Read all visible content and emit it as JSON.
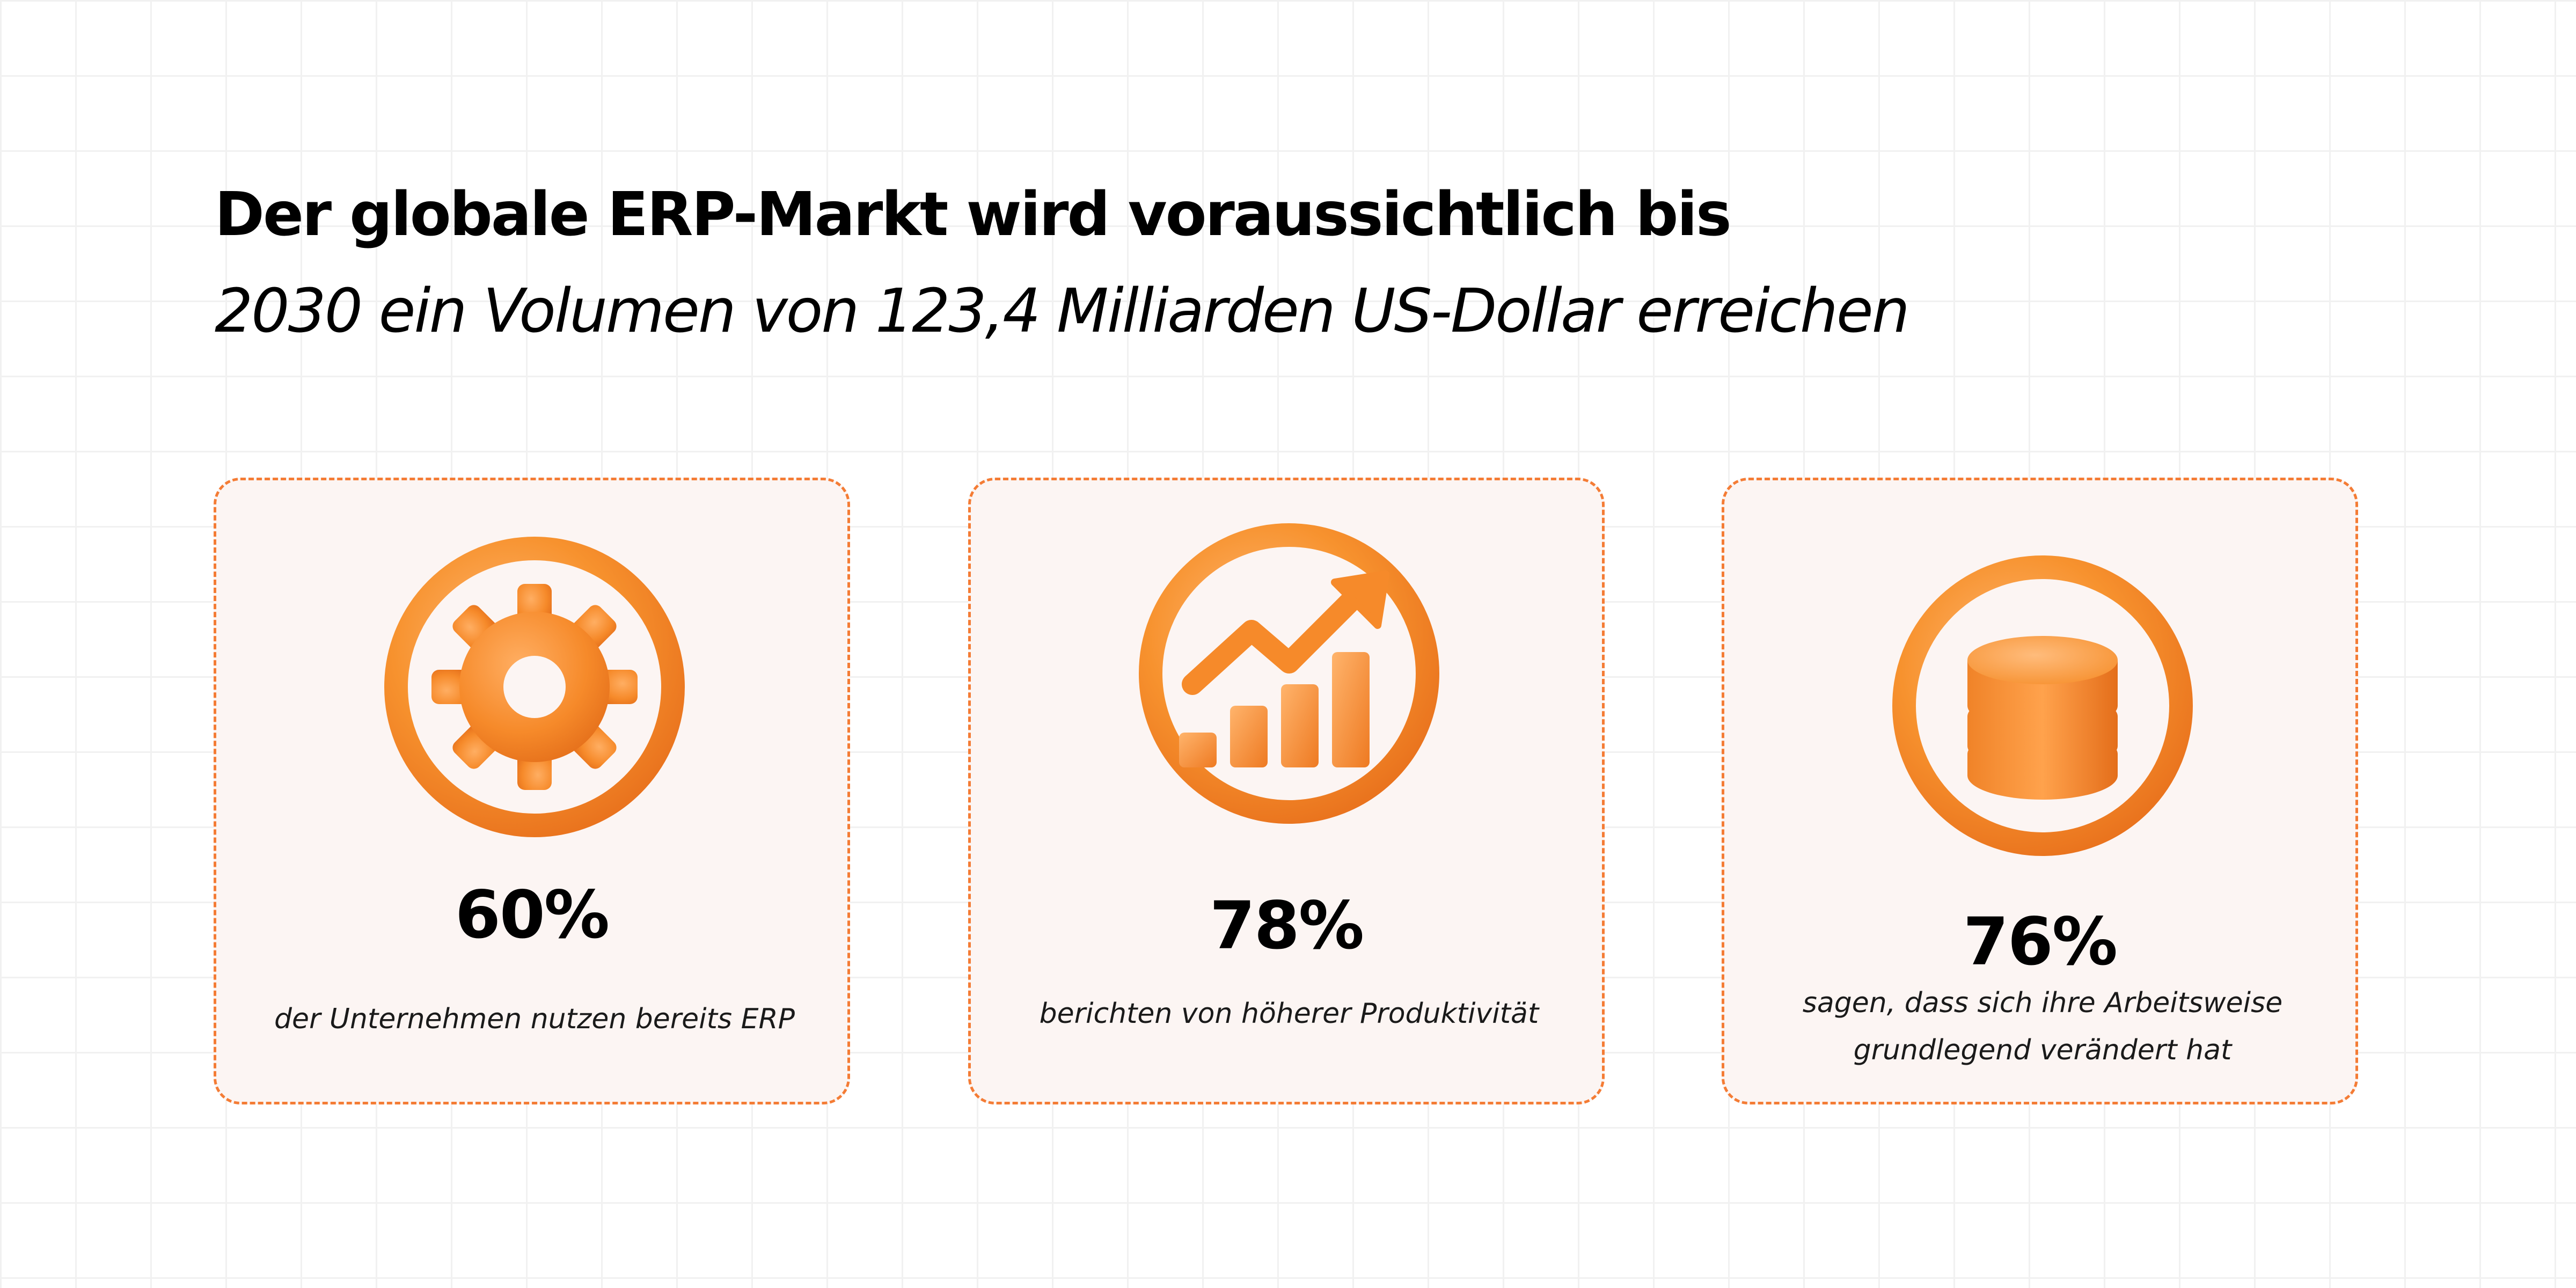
{
  "headline": {
    "line1": "Der globale ERP-Markt wird voraussichtlich bis",
    "line2": "2030 ein Volumen von 123,4 Milliarden US-Dollar erreichen"
  },
  "colors": {
    "accent": "#f7922e",
    "accent_dark": "#e8701c",
    "accent_light": "#ffb874",
    "card_background": "#fcf5f3",
    "card_border": "#f47c35",
    "grid_line": "#f1f1f1"
  },
  "stats": [
    {
      "icon": "gear-icon",
      "value": "60%",
      "caption": "der Unternehmen nutzen bereits ERP"
    },
    {
      "icon": "growth-chart-icon",
      "value": "78%",
      "caption": "berichten von höherer Produktivität"
    },
    {
      "icon": "database-icon",
      "value": "76%",
      "caption": "sagen, dass sich ihre Arbeitsweise grundlegend verändert hat"
    }
  ]
}
